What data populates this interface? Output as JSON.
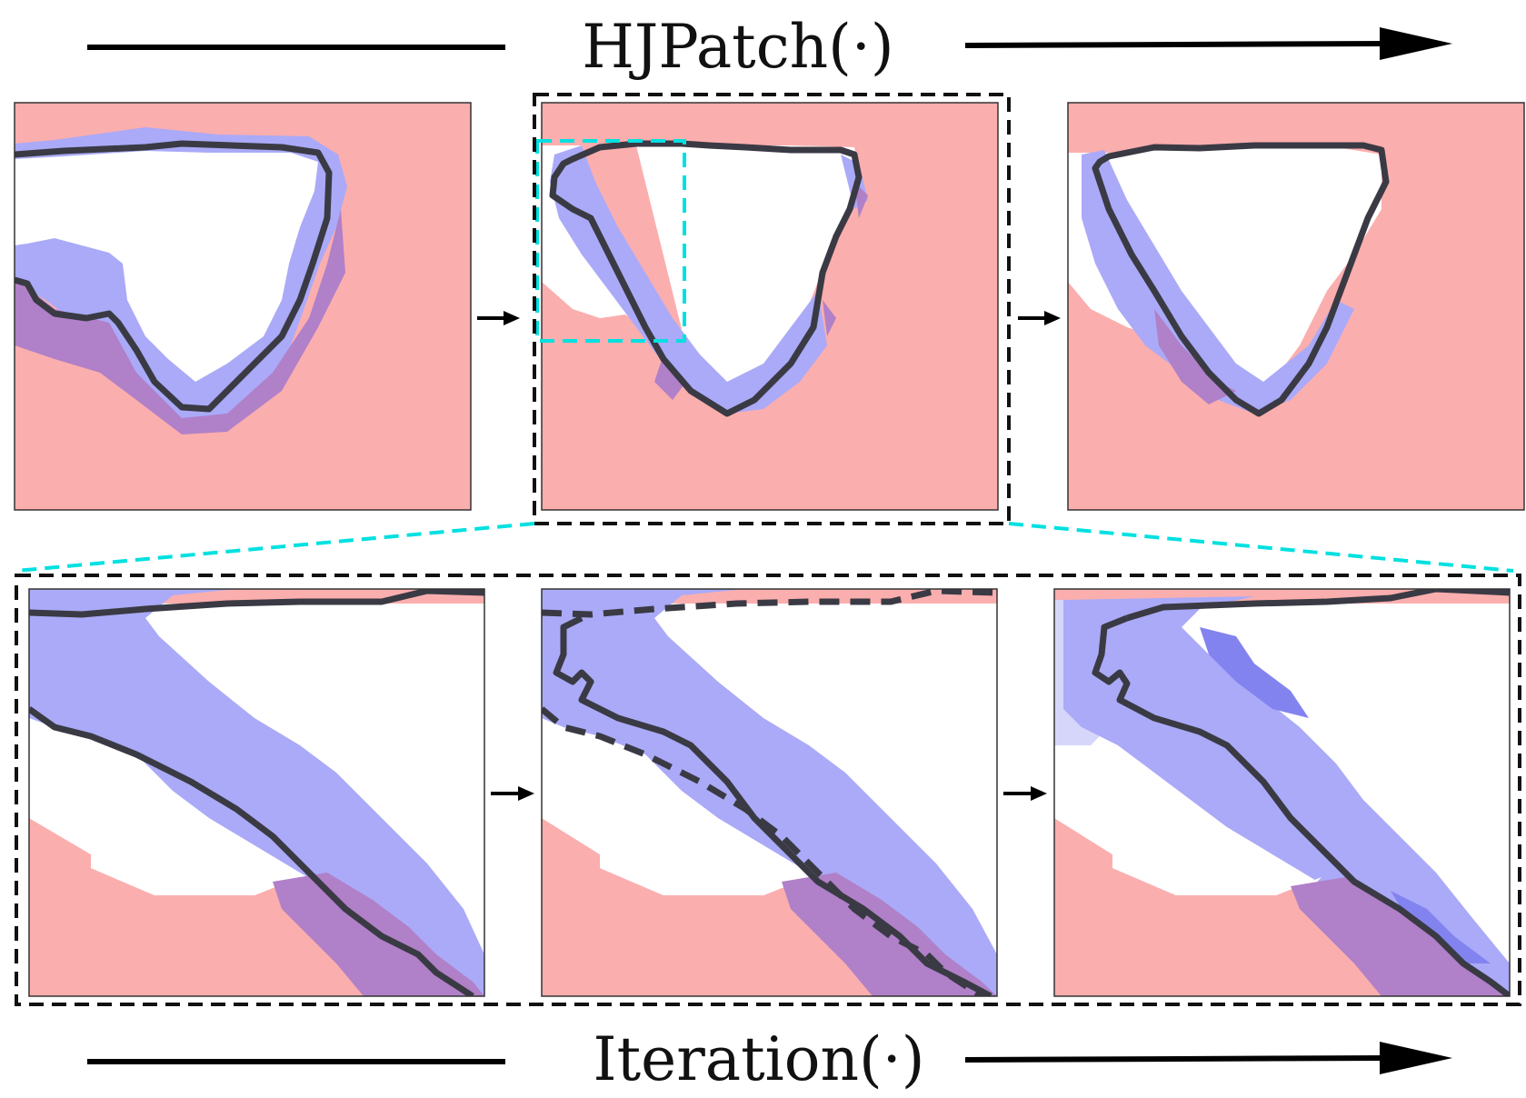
{
  "top_label": "HJPatch(·)",
  "bottom_label": "Iteration(·)",
  "colors": {
    "background_region": "#fbaeae",
    "band": "#aaaaf8",
    "band_dark": "#8383f0",
    "band_light": "#d6d6fa",
    "overlap": "#b080c8",
    "contour": "#3a3a44",
    "zoom_box": "#00e0e0",
    "frame": "#111111"
  },
  "icons": [
    "right-arrow-icon"
  ]
}
